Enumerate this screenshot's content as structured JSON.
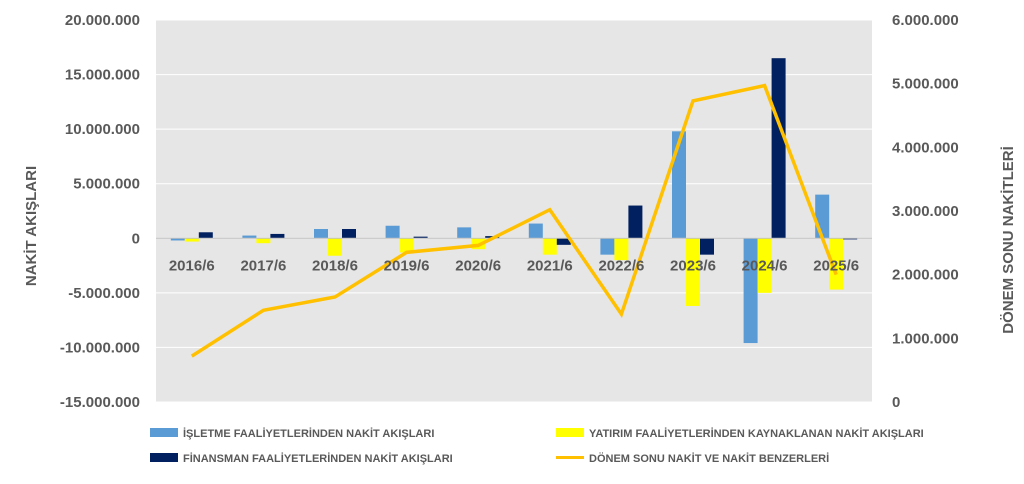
{
  "chart_data": {
    "type": "bar",
    "categories": [
      "2016/6",
      "2017/6",
      "2018/6",
      "2019/6",
      "2020/6",
      "2021/6",
      "2022/6",
      "2023/6",
      "2024/6",
      "2025/6"
    ],
    "series": [
      {
        "name": "İŞLETME FAALİYETLERİNDEN NAKİT AKIŞLARI",
        "type": "bar",
        "axis": "left",
        "color": "#5B9BD5",
        "values": [
          -200000,
          250000,
          850000,
          1150000,
          1000000,
          1350000,
          -1500000,
          9800000,
          -9600000,
          4000000
        ]
      },
      {
        "name": "YATIRIM FAALİYETLERİNDEN KAYNAKLANAN NAKİT AKIŞLARI",
        "type": "bar",
        "axis": "left",
        "color": "#FFFF00",
        "values": [
          -300000,
          -450000,
          -1600000,
          -1300000,
          -1000000,
          -1500000,
          -2000000,
          -6200000,
          -5000000,
          -4700000
        ]
      },
      {
        "name": "FİNANSMAN FAALİYETLERİNDEN NAKİT AKIŞLARI",
        "type": "bar",
        "axis": "left",
        "color": "#002060",
        "values": [
          550000,
          400000,
          850000,
          150000,
          200000,
          -600000,
          3000000,
          -1500000,
          16500000,
          -100000
        ]
      },
      {
        "name": "DÖNEM SONU NAKİT VE NAKİT BENZERLERİ",
        "type": "line",
        "axis": "right",
        "color": "#FFC000",
        "values": [
          720000,
          1440000,
          1650000,
          2350000,
          2460000,
          3020000,
          1380000,
          4730000,
          4970000,
          2000000
        ]
      }
    ],
    "ylabel": "NAKİT AKIŞLARI",
    "y2label": "DÖNEM SONU NAKİTLERİ",
    "ylim": [
      -15000000,
      20000000
    ],
    "y2lim": [
      0,
      6000000
    ],
    "yticks": [
      "20.000.000",
      "15.000.000",
      "10.000.000",
      "5.000.000",
      "0",
      "-5.000.000",
      "-10.000.000",
      "-15.000.000"
    ],
    "y2ticks": [
      "6.000.000",
      "5.000.000",
      "4.000.000",
      "3.000.000",
      "2.000.000",
      "1.000.000",
      "0"
    ],
    "grid": true,
    "legend_position": "bottom"
  }
}
